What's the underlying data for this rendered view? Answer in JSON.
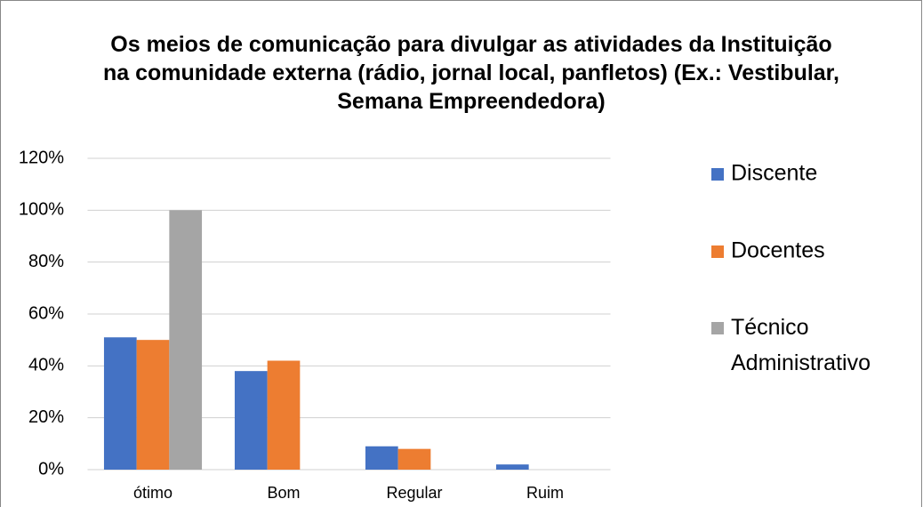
{
  "chart_data": {
    "type": "bar",
    "title": "Os meios de comunicação para divulgar as atividades da Instituição na comunidade externa (rádio, jornal local, panfletos) (Ex.: Vestibular, Semana Empreendedora)",
    "categories": [
      "ótimo",
      "Bom",
      "Regular",
      "Ruim"
    ],
    "series": [
      {
        "name": "Discente",
        "color": "#4472c4",
        "values": [
          51,
          38,
          9,
          2
        ]
      },
      {
        "name": "Docentes",
        "color": "#ed7d31",
        "values": [
          50,
          42,
          8,
          0
        ]
      },
      {
        "name": "Técnico Administrativo",
        "color": "#a5a5a5",
        "values": [
          100,
          0,
          0,
          0
        ]
      }
    ],
    "ylim": [
      0,
      120
    ],
    "yticks": [
      {
        "value": 0,
        "label": "0%"
      },
      {
        "value": 20,
        "label": "20%"
      },
      {
        "value": 40,
        "label": "40%"
      },
      {
        "value": 60,
        "label": "60%"
      },
      {
        "value": 80,
        "label": "80%"
      },
      {
        "value": 100,
        "label": "100%"
      },
      {
        "value": 120,
        "label": "120%"
      }
    ],
    "grid": true,
    "legend": "right"
  }
}
